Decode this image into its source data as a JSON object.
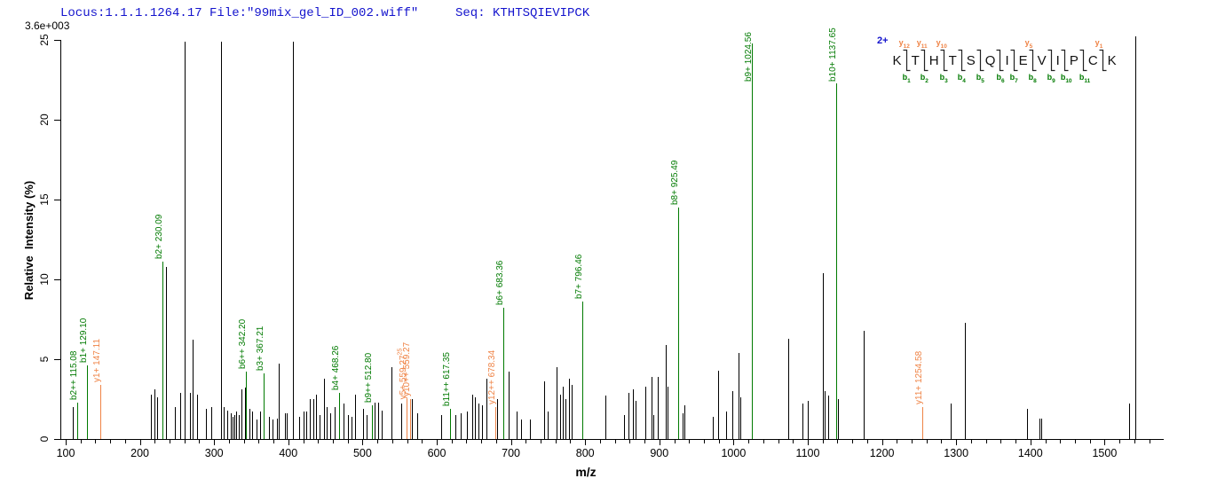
{
  "header": {
    "locus_text": "Locus:1.1.1.1264.17 File:\"99mix_gel_ID_002.wiff\"",
    "seq_text": "Seq: KTHTSQIEVIPCK",
    "scale_label": "3.6e+003"
  },
  "axes": {
    "xlabel": "m/z",
    "ylabel": "Relative  Intensity (%)",
    "x_ticks": [
      100,
      200,
      300,
      400,
      500,
      600,
      700,
      800,
      900,
      1000,
      1100,
      1200,
      1300,
      1400,
      1500
    ],
    "x_minor_start": 100,
    "x_minor_end": 1560,
    "x_minor_step": 20,
    "y_ticks": [
      0,
      5,
      10,
      15,
      20,
      25
    ],
    "y_max": 25
  },
  "colors": {
    "b_ion": "#007a00",
    "y_ion": "#ef8345",
    "peak": "#000000",
    "title_blue": "#1414cd"
  },
  "fragmentation": {
    "charge": "2+",
    "residues": [
      "K",
      "T",
      "H",
      "T",
      "S",
      "Q",
      "I",
      "E",
      "V",
      "I",
      "P",
      "C",
      "K"
    ],
    "b_ions": [
      {
        "label": "b1",
        "gap": 1
      },
      {
        "label": "b2",
        "gap": 2
      },
      {
        "label": "b3",
        "gap": 3
      },
      {
        "label": "b4",
        "gap": 4
      },
      {
        "label": "b5",
        "gap": 5
      },
      {
        "label": "b6",
        "gap": 6
      },
      {
        "label": "b7",
        "gap": 7
      },
      {
        "label": "b8",
        "gap": 8
      },
      {
        "label": "b9",
        "gap": 9
      },
      {
        "label": "b10",
        "gap": 10
      },
      {
        "label": "b11",
        "gap": 11
      }
    ],
    "y_ions": [
      {
        "label": "y12",
        "gap": 1
      },
      {
        "label": "y11",
        "gap": 2
      },
      {
        "label": "y10",
        "gap": 3
      },
      {
        "label": "y5",
        "gap": 8
      },
      {
        "label": "y1",
        "gap": 12
      }
    ]
  },
  "chart_data": {
    "type": "bar",
    "xlabel": "m/z",
    "ylabel": "Relative  Intensity (%)",
    "xlim": [
      100,
      1580
    ],
    "ylim": [
      0,
      25
    ],
    "grid": false,
    "intensity_scale": "3.6e+003",
    "annotated_peaks": [
      {
        "label": "b2++ 115.08",
        "ion": "b",
        "mz": 115.08,
        "intensity_pct": 2.3
      },
      {
        "label": "b1+ 129.10",
        "ion": "b",
        "mz": 129.1,
        "intensity_pct": 4.6
      },
      {
        "label": "y1+ 147.11",
        "ion": "y",
        "mz": 147.11,
        "intensity_pct": 3.4
      },
      {
        "label": "b2+ 230.09",
        "ion": "b",
        "mz": 230.09,
        "intensity_pct": 11.1
      },
      {
        "label": "b6++ 342.20",
        "ion": "b",
        "mz": 342.2,
        "intensity_pct": 4.2
      },
      {
        "label": "b3+ 367.21",
        "ion": "b",
        "mz": 367.21,
        "intensity_pct": 4.1
      },
      {
        "label": "b4+ 468.26",
        "ion": "b",
        "mz": 468.26,
        "intensity_pct": 2.9
      },
      {
        "label": "b9++ 512.80",
        "ion": "b",
        "mz": 512.8,
        "intensity_pct": 2.1
      },
      {
        "label": "y5+ 559.27",
        "ion": "y",
        "mz": 559.27,
        "intensity_pct": 2.5,
        "sup": "25"
      },
      {
        "label": "y10++ 559.27",
        "ion": "y",
        "mz": 559.27,
        "intensity_pct": 2.5,
        "dx": 4
      },
      {
        "label": "b11++ 617.35",
        "ion": "b",
        "mz": 617.35,
        "intensity_pct": 1.9
      },
      {
        "label": "y12++ 678.34",
        "ion": "y",
        "mz": 678.34,
        "intensity_pct": 2.0
      },
      {
        "label": "b6+ 683.36",
        "ion": "b",
        "mz": 683.36,
        "intensity_pct": 8.2,
        "dx": 5
      },
      {
        "label": "b7+ 796.46",
        "ion": "b",
        "mz": 796.46,
        "intensity_pct": 8.6
      },
      {
        "label": "b8+ 925.49",
        "ion": "b",
        "mz": 925.49,
        "intensity_pct": 14.5
      },
      {
        "label": "b9+ 1024.56",
        "ion": "b",
        "mz": 1024.56,
        "intensity_pct": 24.8
      },
      {
        "label": "b10+ 1137.65",
        "ion": "b",
        "mz": 1137.65,
        "intensity_pct": 22.3
      },
      {
        "label": "y11+ 1254.58",
        "ion": "y",
        "mz": 1254.58,
        "intensity_pct": 2.0
      }
    ],
    "unlabeled_peaks": [
      [
        110.0,
        2.0
      ],
      [
        214.8,
        2.8
      ],
      [
        219.2,
        3.1
      ],
      [
        223.5,
        2.6
      ],
      [
        235.7,
        10.8
      ],
      [
        247.1,
        2.0
      ],
      [
        254.3,
        2.9
      ],
      [
        260.6,
        24.9
      ],
      [
        267.1,
        2.9
      ],
      [
        271.0,
        6.2
      ],
      [
        277.1,
        2.8
      ],
      [
        289.0,
        1.9
      ],
      [
        296.2,
        2.0
      ],
      [
        309.7,
        24.9
      ],
      [
        313.0,
        2.0
      ],
      [
        317.7,
        1.8
      ],
      [
        322.5,
        1.6
      ],
      [
        324.9,
        1.4
      ],
      [
        327.3,
        1.5
      ],
      [
        329.7,
        1.7
      ],
      [
        333.3,
        1.5
      ],
      [
        336.8,
        3.1
      ],
      [
        341.0,
        3.2
      ],
      [
        347.3,
        1.9
      ],
      [
        351.6,
        1.7
      ],
      [
        357.6,
        1.2
      ],
      [
        362.3,
        1.7
      ],
      [
        374.3,
        1.4
      ],
      [
        379.1,
        1.2
      ],
      [
        384.7,
        1.3
      ],
      [
        387.4,
        4.7
      ],
      [
        395.1,
        1.6
      ],
      [
        397.5,
        1.6
      ],
      [
        406.6,
        24.9
      ],
      [
        414.6,
        1.4
      ],
      [
        420.3,
        1.7
      ],
      [
        424.2,
        1.7
      ],
      [
        429.0,
        2.5
      ],
      [
        433.3,
        2.5
      ],
      [
        437.7,
        2.8
      ],
      [
        442.1,
        1.5
      ],
      [
        447.7,
        3.8
      ],
      [
        452.0,
        2.0
      ],
      [
        456.4,
        1.6
      ],
      [
        462.0,
        2.0
      ],
      [
        474.4,
        2.2
      ],
      [
        480.8,
        1.5
      ],
      [
        485.6,
        1.4
      ],
      [
        490.0,
        2.8
      ],
      [
        501.1,
        1.9
      ],
      [
        505.9,
        1.5
      ],
      [
        516.3,
        2.3
      ],
      [
        520.7,
        2.3
      ],
      [
        525.9,
        1.8
      ],
      [
        539.0,
        4.5
      ],
      [
        551.8,
        2.2
      ],
      [
        566.5,
        2.5
      ],
      [
        573.7,
        1.6
      ],
      [
        605.6,
        1.5
      ],
      [
        624.7,
        1.5
      ],
      [
        632.7,
        1.6
      ],
      [
        640.3,
        1.7
      ],
      [
        648.2,
        2.8
      ],
      [
        651.4,
        2.6
      ],
      [
        656.6,
        2.2
      ],
      [
        661.4,
        2.1
      ],
      [
        666.6,
        3.8
      ],
      [
        681.3,
        2.5
      ],
      [
        697.1,
        4.2
      ],
      [
        707.1,
        1.7
      ],
      [
        714.0,
        1.2
      ],
      [
        725.6,
        1.2
      ],
      [
        745.1,
        3.6
      ],
      [
        749.9,
        1.7
      ],
      [
        761.1,
        4.5
      ],
      [
        766.3,
        2.8
      ],
      [
        769.9,
        3.3
      ],
      [
        773.4,
        2.5
      ],
      [
        778.2,
        3.8
      ],
      [
        781.8,
        3.4
      ],
      [
        827.6,
        2.7
      ],
      [
        852.8,
        1.5
      ],
      [
        858.7,
        2.9
      ],
      [
        864.7,
        3.1
      ],
      [
        868.0,
        2.4
      ],
      [
        880.8,
        3.3
      ],
      [
        890.0,
        3.9
      ],
      [
        892.0,
        1.5
      ],
      [
        898.0,
        3.9
      ],
      [
        908.6,
        5.9
      ],
      [
        910.6,
        3.3
      ],
      [
        931.7,
        1.6
      ],
      [
        933.7,
        2.1
      ],
      [
        971.6,
        1.4
      ],
      [
        979.6,
        4.3
      ],
      [
        989.6,
        1.7
      ],
      [
        998.3,
        3.0
      ],
      [
        1006.3,
        5.4
      ],
      [
        1008.5,
        2.6
      ],
      [
        1074.0,
        6.3
      ],
      [
        1093.2,
        2.2
      ],
      [
        1100.0,
        2.4
      ],
      [
        1120.0,
        10.4
      ],
      [
        1122.7,
        3.0
      ],
      [
        1127.1,
        2.7
      ],
      [
        1140.6,
        2.5
      ],
      [
        1175.0,
        6.8
      ],
      [
        1292.7,
        2.2
      ],
      [
        1311.4,
        7.3
      ],
      [
        1395.1,
        1.9
      ],
      [
        1412.2,
        1.3
      ],
      [
        1414.5,
        1.3
      ],
      [
        1533.4,
        2.2
      ],
      [
        1541.4,
        25.2
      ]
    ]
  }
}
